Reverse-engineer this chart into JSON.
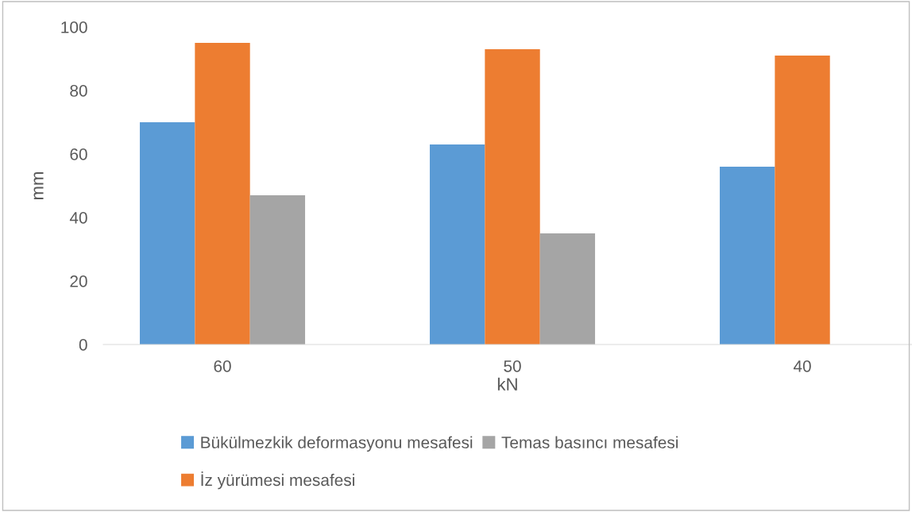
{
  "chart_data": {
    "type": "bar",
    "xlabel": "kN",
    "ylabel": "mm",
    "categories": [
      "60",
      "50",
      "40"
    ],
    "series": [
      {
        "name": "Bükülmezkik deformasyonu mesafesi",
        "color": "#5b9bd5",
        "values": [
          70,
          63,
          56
        ]
      },
      {
        "name": "İz yürümesi mesafesi",
        "color": "#ed7d31",
        "values": [
          95,
          93,
          91
        ]
      },
      {
        "name": "Temas basıncı mesafesi",
        "color": "#a5a5a5",
        "values": [
          47,
          35,
          null
        ]
      }
    ],
    "ylim": [
      0,
      100
    ],
    "yticks": [
      0,
      20,
      40,
      60,
      80,
      100
    ],
    "grid": false,
    "legend": "bottom"
  }
}
